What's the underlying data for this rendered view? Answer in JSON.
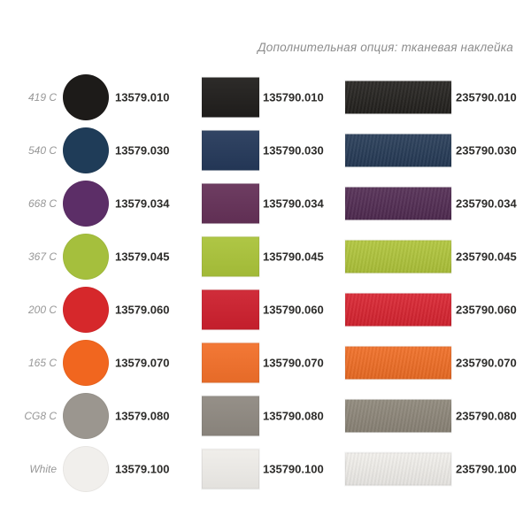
{
  "header": {
    "title": "Дополнительная опция: тканевая наклейка"
  },
  "rows": [
    {
      "pantone": "419 C",
      "circle_code": "13579.010",
      "fabric_code": "135790.010",
      "ribbon_code": "235790.010",
      "colors": {
        "circle": "#1d1b19",
        "fabric": "#201e1c",
        "ribbon": "#23211e"
      }
    },
    {
      "pantone": "540 C",
      "circle_code": "13579.030",
      "fabric_code": "135790.030",
      "ribbon_code": "235790.030",
      "colors": {
        "circle": "#1f3c58",
        "fabric": "#25395a",
        "ribbon": "#253a56"
      }
    },
    {
      "pantone": "668 C",
      "circle_code": "13579.034",
      "fabric_code": "135790.034",
      "ribbon_code": "235790.034",
      "colors": {
        "circle": "#5c2e67",
        "fabric": "#653158",
        "ribbon": "#512b52"
      }
    },
    {
      "pantone": "367 C",
      "circle_code": "13579.045",
      "fabric_code": "135790.045",
      "ribbon_code": "235790.045",
      "colors": {
        "circle": "#a5bf3d",
        "fabric": "#aac33a",
        "ribbon": "#b0c53a"
      }
    },
    {
      "pantone": "200 C",
      "circle_code": "13579.060",
      "fabric_code": "135790.060",
      "ribbon_code": "235790.060",
      "colors": {
        "circle": "#d6282b",
        "fabric": "#cd202e",
        "ribbon": "#d92330"
      }
    },
    {
      "pantone": "165 C",
      "circle_code": "13579.070",
      "fabric_code": "135790.070",
      "ribbon_code": "235790.070",
      "colors": {
        "circle": "#f1661f",
        "fabric": "#f2702a",
        "ribbon": "#f06d24"
      }
    },
    {
      "pantone": "CG8 C",
      "circle_code": "13579.080",
      "fabric_code": "135790.080",
      "ribbon_code": "235790.080",
      "colors": {
        "circle": "#9b968f",
        "fabric": "#8f8981",
        "ribbon": "#8d8679"
      }
    },
    {
      "pantone": "White",
      "circle_code": "13579.100",
      "fabric_code": "135790.100",
      "ribbon_code": "235790.100",
      "colors": {
        "circle": "#f1efec",
        "fabric": "#efede9",
        "ribbon": "#f1efeb"
      }
    }
  ]
}
